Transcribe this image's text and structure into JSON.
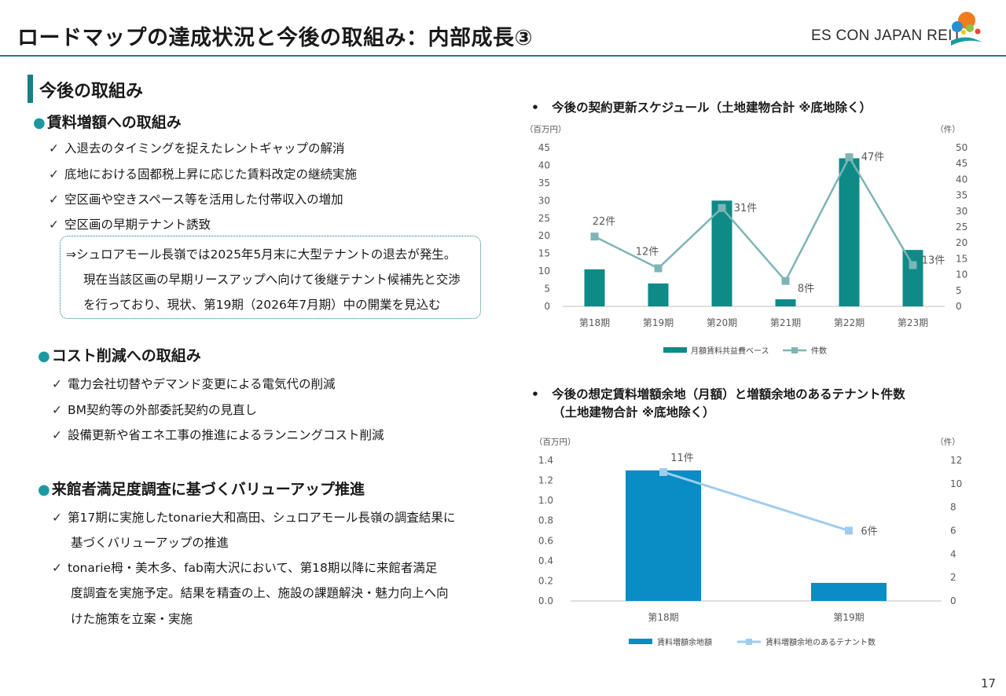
{
  "header": {
    "title": "ロードマップの達成状況と今後の取組み：内部成長③",
    "logo_text": "ES CON JAPAN REIT"
  },
  "section_title": "今後の取組み",
  "groups": [
    {
      "heading": "賃料増額への取組み",
      "items": [
        "入退去のタイミングを捉えたレントギャップの解消",
        "底地における固都税上昇に応じた賃料改定の継続実施",
        "空区画や空きスペース等を活用した付帯収入の増加",
        "空区画の早期テナント誘致"
      ],
      "note": [
        "⇒シュロアモール長嶺では2025年5月末に大型テナントの退去が発生。",
        "現在当該区画の早期リースアップへ向けて後継テナント候補先と交渉",
        "を行っており、現状、第19期（2026年7月期）中の開業を見込む"
      ]
    },
    {
      "heading": "コスト削減への取組み",
      "items": [
        "電力会社切替やデマンド変更による電気代の削減",
        "BM契約等の外部委託契約の見直し",
        "設備更新や省エネ工事の推進によるランニングコスト削減"
      ]
    },
    {
      "heading": "来館者満足度調査に基づくバリューアップ推進",
      "items": [
        "第17期に実施したtonarie大和高田、シュロアモール長嶺の調査結果に",
        "tonarie栂・美木多、fab南大沢において、第18期以降に来館者満足"
      ],
      "continuations": [
        "基づくバリューアップの推進",
        "度調査を実施予定。結果を精査の上、施設の課題解決・魅力向上へ向",
        "けた施策を立案・実施"
      ]
    }
  ],
  "chart_data": [
    {
      "type": "bar+line",
      "title": "今後の契約更新スケジュール（土地建物合計 ※底地除く）",
      "categories": [
        "第18期",
        "第19期",
        "第20期",
        "第21期",
        "第22期",
        "第23期"
      ],
      "left_axis_unit": "（百万円）",
      "right_axis_unit": "（件）",
      "left_ticks": [
        "0",
        "5",
        "10",
        "15",
        "20",
        "25",
        "30",
        "35",
        "40",
        "45"
      ],
      "right_ticks": [
        "0",
        "5",
        "10",
        "15",
        "20",
        "25",
        "30",
        "35",
        "40",
        "45",
        "50"
      ],
      "ylim_left": [
        0,
        45
      ],
      "ylim_right": [
        0,
        50
      ],
      "series": [
        {
          "name": "月額賃料共益費ベース",
          "kind": "bar",
          "axis": "left",
          "values": [
            10.5,
            6.5,
            30,
            2,
            42,
            16
          ],
          "color": "#0e8a87"
        },
        {
          "name": "件数",
          "kind": "line",
          "axis": "right",
          "values": [
            22,
            12,
            31,
            8,
            47,
            13
          ],
          "labels": [
            "22件",
            "12件",
            "31件",
            "8件",
            "47件",
            "13件"
          ],
          "color": "#7fb4b6"
        }
      ],
      "grid": false,
      "legend": "bottom"
    },
    {
      "type": "bar+line",
      "title_lines": [
        "今後の想定賃料増額余地（月額）と増額余地のあるテナント件数",
        "（土地建物合計 ※底地除く）"
      ],
      "categories": [
        "第18期",
        "第19期"
      ],
      "left_axis_unit": "（百万円）",
      "right_axis_unit": "（件）",
      "left_ticks": [
        "0.0",
        "0.2",
        "0.4",
        "0.6",
        "0.8",
        "1.0",
        "1.2",
        "1.4"
      ],
      "right_ticks": [
        "0",
        "2",
        "4",
        "6",
        "8",
        "10",
        "12"
      ],
      "ylim_left": [
        0,
        1.4
      ],
      "ylim_right": [
        0,
        12
      ],
      "series": [
        {
          "name": "賃料増額余地額",
          "kind": "bar",
          "axis": "left",
          "values": [
            1.3,
            0.18
          ],
          "color": "#0a8cc4"
        },
        {
          "name": "賃料増額余地のあるテナント数",
          "kind": "line",
          "axis": "right",
          "values": [
            11,
            6
          ],
          "labels": [
            "11件",
            "6件"
          ],
          "color": "#9fcdee"
        }
      ],
      "grid": false,
      "legend": "bottom"
    }
  ],
  "page_number": "17"
}
